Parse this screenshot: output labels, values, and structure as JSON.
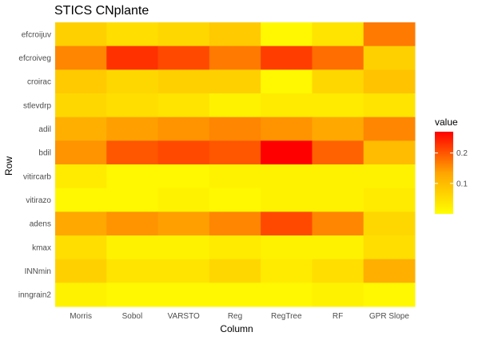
{
  "chart_data": {
    "type": "heatmap",
    "title": "STICS CNplante",
    "xlabel": "Column",
    "ylabel": "Row",
    "columns": [
      "Morris",
      "Sobol",
      "VARSTO",
      "Reg",
      "RegTree",
      "RF",
      "GPR Slope"
    ],
    "rows": [
      "efcroijuv",
      "efcroiveg",
      "croirac",
      "stlevdrp",
      "adil",
      "bdil",
      "vitircarb",
      "vitirazo",
      "adens",
      "kmax",
      "INNmin",
      "inngrain2"
    ],
    "values": [
      [
        0.07,
        0.05,
        0.06,
        0.08,
        0.01,
        0.04,
        0.17
      ],
      [
        0.16,
        0.23,
        0.21,
        0.17,
        0.22,
        0.18,
        0.07
      ],
      [
        0.08,
        0.06,
        0.07,
        0.07,
        0.01,
        0.06,
        0.09
      ],
      [
        0.06,
        0.05,
        0.04,
        0.02,
        0.03,
        0.03,
        0.04
      ],
      [
        0.12,
        0.14,
        0.15,
        0.16,
        0.15,
        0.13,
        0.16
      ],
      [
        0.15,
        0.2,
        0.21,
        0.2,
        0.27,
        0.19,
        0.1
      ],
      [
        0.03,
        0.01,
        0.01,
        0.02,
        0.02,
        0.02,
        0.02
      ],
      [
        0.01,
        0.01,
        0.02,
        0.01,
        0.02,
        0.02,
        0.03
      ],
      [
        0.13,
        0.15,
        0.14,
        0.16,
        0.21,
        0.16,
        0.06
      ],
      [
        0.05,
        0.02,
        0.02,
        0.03,
        0.02,
        0.02,
        0.05
      ],
      [
        0.07,
        0.04,
        0.04,
        0.06,
        0.03,
        0.05,
        0.12
      ],
      [
        0.02,
        0.01,
        0.01,
        0.01,
        0.01,
        0.02,
        0.01
      ]
    ],
    "legend": {
      "title": "value",
      "ticks": [
        0.1,
        0.2
      ],
      "range": [
        0,
        0.27
      ],
      "placement": "right"
    },
    "colors": {
      "low": "#ffff00",
      "mid": "#ffa500",
      "high": "#ff0000"
    },
    "grid": true
  }
}
